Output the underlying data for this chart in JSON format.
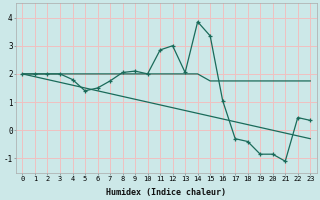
{
  "xlabel": "Humidex (Indice chaleur)",
  "bg_color": "#cce8e8",
  "grid_color": "#f0c0c0",
  "line_color": "#1a6b5a",
  "xlim": [
    -0.5,
    23.5
  ],
  "ylim": [
    -1.5,
    4.5
  ],
  "xticks": [
    0,
    1,
    2,
    3,
    4,
    5,
    6,
    7,
    8,
    9,
    10,
    11,
    12,
    13,
    14,
    15,
    16,
    17,
    18,
    19,
    20,
    21,
    22,
    23
  ],
  "yticks": [
    -1,
    0,
    1,
    2,
    3,
    4
  ],
  "series1_x": [
    0,
    14,
    15,
    23
  ],
  "series1_y": [
    2.0,
    2.0,
    1.75,
    1.75
  ],
  "series2_x": [
    0,
    1,
    2,
    3,
    4,
    5,
    6,
    7,
    8,
    9,
    10,
    11,
    12,
    13,
    14,
    15,
    16,
    17,
    18,
    19,
    20,
    21,
    22,
    23
  ],
  "series2_y": [
    2.0,
    2.0,
    2.0,
    2.0,
    1.8,
    1.4,
    1.5,
    1.75,
    2.05,
    2.1,
    2.0,
    2.85,
    3.0,
    2.05,
    3.85,
    3.35,
    1.05,
    -0.3,
    -0.4,
    -0.85,
    -0.85,
    -1.1,
    0.45,
    0.35
  ],
  "series3_x": [
    0,
    23
  ],
  "series3_y": [
    2.0,
    -0.3
  ]
}
